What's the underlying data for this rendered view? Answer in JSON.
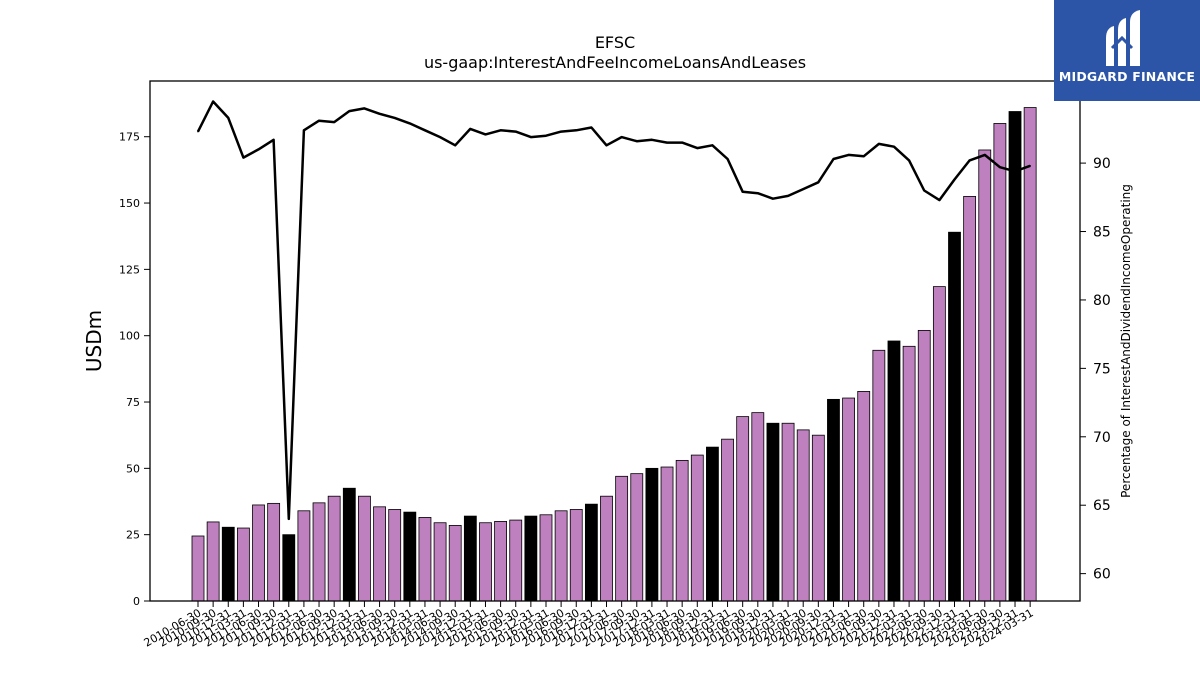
{
  "logo": {
    "text": "MIDGARD FINANCE"
  },
  "chart_data": {
    "type": "bar",
    "title": "EFSC",
    "subtitle": "us-gaap:InterestAndFeeIncomeLoansAndLeases",
    "ylabel": "USDm",
    "y2label": "Percentage of InterestAndDividendIncomeOperating",
    "ylim": [
      0,
      196
    ],
    "y2lim": [
      58,
      96
    ],
    "yticks": [
      0,
      25,
      50,
      75,
      100,
      125,
      150,
      175
    ],
    "y2ticks": [
      60,
      65,
      70,
      75,
      80,
      85,
      90
    ],
    "grid": false,
    "colors": {
      "bar_default": "#bf80bf",
      "bar_fiscal_q4": "#000000",
      "line": "#000000"
    },
    "categories": [
      "2010-06-30",
      "2010-09-30",
      "2010-12-31",
      "2011-03-31",
      "2011-06-30",
      "2011-09-30",
      "2011-12-31",
      "2012-03-31",
      "2012-06-30",
      "2012-09-30",
      "2012-12-31",
      "2013-03-31",
      "2013-06-30",
      "2013-09-30",
      "2013-12-31",
      "2014-03-31",
      "2014-06-30",
      "2014-09-30",
      "2014-12-31",
      "2015-03-31",
      "2015-06-30",
      "2015-09-30",
      "2015-12-31",
      "2016-03-31",
      "2016-06-30",
      "2016-09-30",
      "2016-12-31",
      "2017-03-31",
      "2017-06-30",
      "2017-09-30",
      "2017-12-31",
      "2018-03-31",
      "2018-06-30",
      "2018-09-30",
      "2018-12-31",
      "2019-03-31",
      "2019-06-30",
      "2019-09-30",
      "2019-12-31",
      "2020-03-31",
      "2020-06-30",
      "2020-09-30",
      "2020-12-31",
      "2021-03-31",
      "2021-06-30",
      "2021-09-30",
      "2021-12-31",
      "2022-03-31",
      "2022-06-30",
      "2022-09-30",
      "2022-12-31",
      "2023-03-31",
      "2023-06-30",
      "2023-09-30",
      "2023-12-31",
      "2024-03-31"
    ],
    "series": [
      {
        "kind": "bar",
        "axis": "left",
        "values": [
          24.5,
          29.8,
          27.8,
          27.5,
          36.2,
          36.8,
          25.0,
          34.0,
          37.0,
          39.5,
          42.5,
          39.5,
          35.5,
          34.5,
          33.5,
          31.5,
          29.5,
          28.5,
          32.0,
          29.5,
          30.0,
          30.5,
          32.0,
          32.5,
          34.0,
          34.5,
          36.5,
          39.5,
          47.0,
          48.0,
          50.0,
          50.5,
          53.0,
          55.0,
          58.0,
          61.0,
          69.5,
          71.0,
          67.0,
          67.0,
          64.5,
          62.5,
          76.0,
          76.5,
          79.0,
          94.5,
          98.0,
          96.0,
          102.0,
          118.5,
          139.0,
          152.5,
          170.0,
          180.0,
          184.5,
          186.0
        ],
        "highlight": [
          false,
          false,
          true,
          false,
          false,
          false,
          true,
          false,
          false,
          false,
          true,
          false,
          false,
          false,
          true,
          false,
          false,
          false,
          true,
          false,
          false,
          false,
          true,
          false,
          false,
          false,
          true,
          false,
          false,
          false,
          true,
          false,
          false,
          false,
          true,
          false,
          false,
          false,
          true,
          false,
          false,
          false,
          true,
          false,
          false,
          false,
          true,
          false,
          false,
          false,
          true,
          false,
          false,
          false,
          true,
          false
        ]
      },
      {
        "kind": "line",
        "axis": "right",
        "values": [
          92.3,
          94.5,
          93.3,
          90.4,
          91.0,
          91.7,
          64.0,
          92.4,
          93.1,
          93.0,
          93.8,
          94.0,
          93.6,
          93.3,
          92.9,
          92.4,
          91.9,
          91.3,
          92.5,
          92.1,
          92.4,
          92.3,
          91.9,
          92.0,
          92.3,
          92.4,
          92.6,
          91.3,
          91.9,
          91.6,
          91.7,
          91.5,
          91.5,
          91.1,
          91.3,
          90.3,
          87.9,
          87.8,
          87.4,
          87.6,
          88.1,
          88.6,
          90.3,
          90.6,
          90.5,
          91.4,
          91.2,
          90.2,
          88.0,
          87.3,
          88.8,
          90.2,
          90.6,
          89.7,
          89.4,
          89.8
        ]
      }
    ]
  }
}
